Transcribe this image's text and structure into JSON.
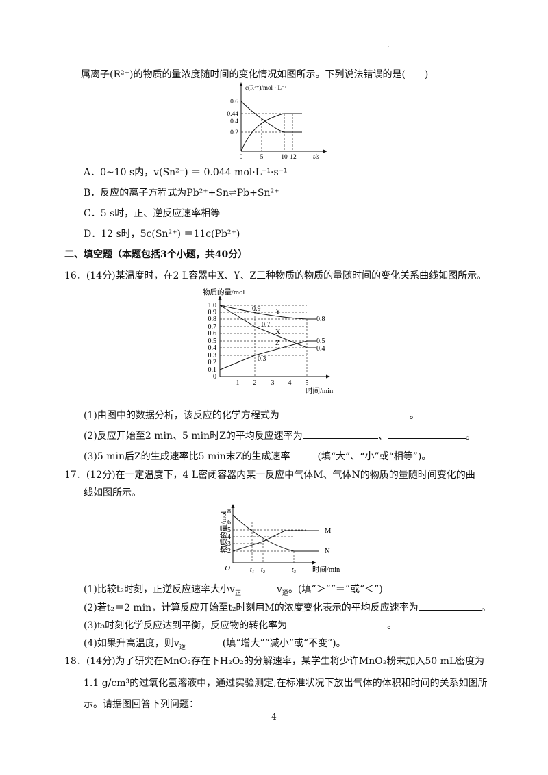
{
  "top_mark": "·",
  "q15": {
    "stem": "属离子(R²⁺)的物质的量浓度随时间的变化情况如图所示。下列说法错误的是(　　)",
    "chart": {
      "ylabel": "c(R²⁺)/mol · L⁻¹",
      "xlabel": "t/s",
      "yticks": [
        "0.6",
        "0.44",
        "0.4",
        "0.2"
      ],
      "xticks": [
        "0",
        "5",
        "10",
        "12"
      ]
    },
    "options": [
      "A．0~10 s内，v(Sn²⁺) ＝ 0.044 mol·L⁻¹·s⁻¹",
      "B．反应的离子方程式为Pb²⁺+Sn⇌Pb+Sn²⁺",
      "C．5 s时，正、逆反应速率相等",
      "D．12 s时，5c(Sn²⁺) ＝11c(Pb²⁺)"
    ]
  },
  "section_title": "二、填空题（本题包括3个小题，共40分）",
  "q16": {
    "stem": "16．(14分)某温度时，在2 L容器中X、Y、Z三种物质的物质的量随时间的变化关系曲线如图所示。",
    "chart": {
      "ylabel": "物质的量/mol",
      "xlabel": "时间/min",
      "yticks": [
        "1.0",
        "0.9",
        "0.8",
        "0.7",
        "0.6",
        "0.5",
        "0.4",
        "0.3",
        "0.2",
        "0.1",
        "0"
      ],
      "xticks": [
        "1",
        "2",
        "3",
        "4",
        "5"
      ],
      "annotations": [
        "0.9",
        "Y",
        "0.7",
        "X",
        "Z",
        "0.3",
        "0.8",
        "0.5",
        "0.4"
      ]
    },
    "sub1": "(1)由图中的数据分析，该反应的化学方程式为",
    "sub1_end": "。",
    "sub2": "(2)反应开始至2 min、5 min时Z的平均反应速率为",
    "sub2_mid": "、",
    "sub2_end": "。",
    "sub3": "(3)5 min后Z的生成速率比5 min末Z的生成速率",
    "sub3_end": "(填“大”、“小”或“相等”)。"
  },
  "q17": {
    "stem1": "17．(12分)在一定温度下，4 L密闭容器内某一反应中气体M、气体N的物质的量随时间变化的曲",
    "stem2": "线如图所示。",
    "chart": {
      "ylabel": "物质的量/mol",
      "xlabel": "时间/min",
      "yticks": [
        "8",
        "6",
        "5",
        "4",
        "3",
        "2"
      ],
      "origin": "O",
      "xticks": [
        "t₁",
        "t₂",
        "t₃"
      ],
      "series": [
        "M",
        "N"
      ]
    },
    "sub1_a": "(1)比较t₂时刻，正逆反应速率大小v",
    "sub1_sub_a": "正",
    "sub1_b": "v",
    "sub1_sub_b": "逆",
    "sub1_end": "。(填“＞”“＝”或“＜”)",
    "sub2": "(2)若t₂＝2 min，计算反应开始至t₂时刻用M的浓度变化表示的平均反应速率为",
    "sub2_end": "。",
    "sub3": "(3)t₃时刻化学反应达到平衡，反应物的转化率为",
    "sub3_end": "。",
    "sub4_a": "(4)如果升高温度，则v",
    "sub4_sub": "逆",
    "sub4_end": "(填“增大”“减小”或“不变”)。"
  },
  "q18": {
    "line1": "18．(14分)为了研究在MnO₂存在下H₂O₂的分解速率，某学生将少许MnO₂粉末加入50 mL密度为",
    "line2": "1.1 g/cm³的过氧化氢溶液中，通过实验测定,在标准状况下放出气体的体积和时间的关系如图所",
    "line3": "示。请据图回答下列问题："
  },
  "page_number": "4"
}
